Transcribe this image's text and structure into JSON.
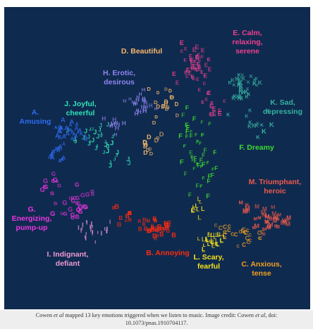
{
  "figure": {
    "background": "#0f2a4f"
  },
  "chart_data": {
    "type": "scatter",
    "title": "",
    "xlabel": "",
    "ylabel": "",
    "grid": false,
    "legend": "none",
    "categories": [
      {
        "code": "A",
        "lines": [
          "A.",
          "Amusing"
        ],
        "color": "#2f6cf5"
      },
      {
        "code": "B",
        "lines": [
          "B. Annoying"
        ],
        "color": "#ff2a10"
      },
      {
        "code": "C",
        "lines": [
          "C. Anxious,",
          "tense"
        ],
        "color": "#f2a020"
      },
      {
        "code": "D",
        "lines": [
          "D. Beautiful"
        ],
        "color": "#f7b86a"
      },
      {
        "code": "E",
        "lines": [
          "E. Calm,",
          "relaxing,",
          "serene"
        ],
        "color": "#ee3f8e"
      },
      {
        "code": "F",
        "lines": [
          "F. Dreamy"
        ],
        "color": "#3ddb2f"
      },
      {
        "code": "G",
        "lines": [
          "G.",
          "Energizing,",
          "pump-up"
        ],
        "color": "#ee35e0"
      },
      {
        "code": "H",
        "lines": [
          "H. Erotic,",
          "desirous"
        ],
        "color": "#8f85f0"
      },
      {
        "code": "I",
        "lines": [
          "I. Indignant,",
          "defiant"
        ],
        "color": "#ee9ad5"
      },
      {
        "code": "J",
        "lines": [
          "J. Joyful,",
          "cheerful"
        ],
        "color": "#2fe2b8"
      },
      {
        "code": "K",
        "lines": [
          "K. Sad,",
          "depressing"
        ],
        "color": "#35b3a0"
      },
      {
        "code": "L",
        "lines": [
          "L. Scary,",
          "fearful"
        ],
        "color": "#f4e11c"
      },
      {
        "code": "M",
        "lines": [
          "M. Triumphant,",
          "heroic"
        ],
        "color": "#ee5a4b"
      }
    ]
  },
  "caption": {
    "line1_pre": "Cowen ",
    "line1_italic1": "et al",
    "line1_mid": " mapped 13 key emotions triggered when we listen to music. Image credit: Cowen ",
    "line1_italic2": "et al",
    "line1_post": ", doi:",
    "line2": "10.1073/pnas.1910704117."
  }
}
